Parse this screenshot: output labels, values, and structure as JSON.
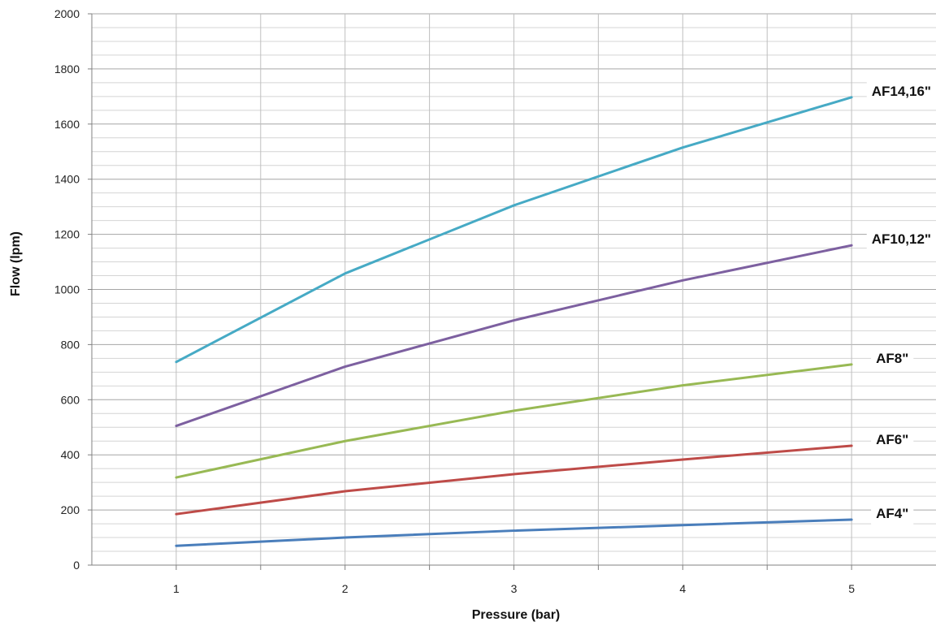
{
  "chart_data": {
    "type": "line",
    "title": "",
    "xlabel": "Pressure (bar)",
    "ylabel": "Flow (lpm)",
    "x": [
      1,
      2,
      3,
      4,
      5
    ],
    "xticks": [
      "1",
      "2",
      "3",
      "4",
      "5"
    ],
    "xlim": [
      0.5,
      5.5
    ],
    "ylim": [
      0,
      2000
    ],
    "yticks": [
      "0",
      "200",
      "400",
      "600",
      "800",
      "1000",
      "1200",
      "1400",
      "1600",
      "1800",
      "2000"
    ],
    "grid": true,
    "legend": "none",
    "series": [
      {
        "name": "AF4\"",
        "color": "#4a7ebb",
        "values": [
          70,
          100,
          125,
          145,
          165
        ]
      },
      {
        "name": "AF6\"",
        "color": "#be4b48",
        "values": [
          185,
          268,
          330,
          383,
          433
        ]
      },
      {
        "name": "AF8\"",
        "color": "#98b954",
        "values": [
          318,
          450,
          560,
          652,
          728
        ]
      },
      {
        "name": "AF10,12\"",
        "color": "#7d60a0",
        "values": [
          505,
          720,
          888,
          1033,
          1160
        ]
      },
      {
        "name": "AF14,16\"",
        "color": "#46aac5",
        "values": [
          737,
          1058,
          1305,
          1515,
          1697
        ]
      }
    ]
  }
}
